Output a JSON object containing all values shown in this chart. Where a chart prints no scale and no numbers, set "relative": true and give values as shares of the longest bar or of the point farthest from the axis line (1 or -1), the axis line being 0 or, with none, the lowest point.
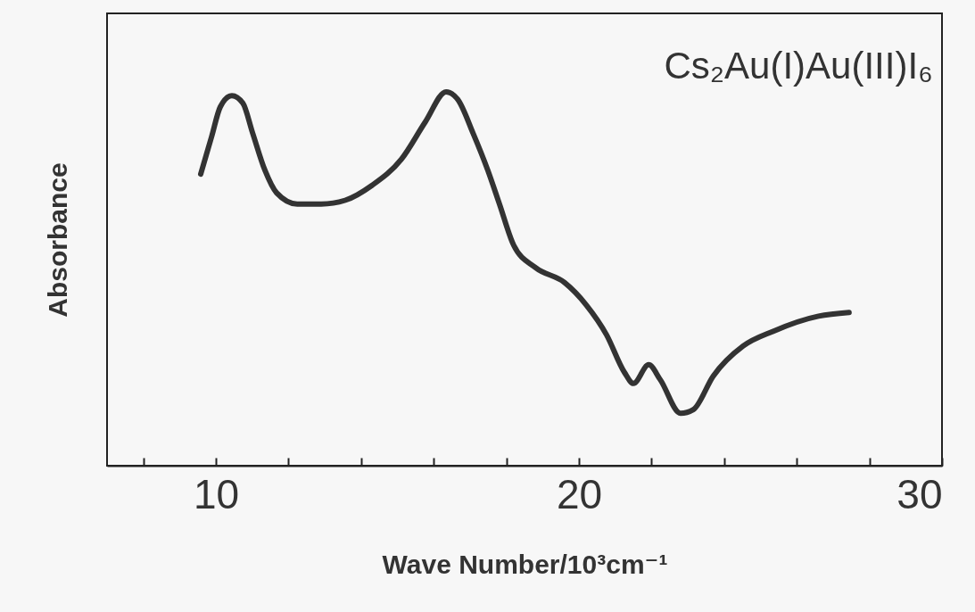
{
  "chart_data": {
    "type": "line",
    "relative": true,
    "xlabel": "Wave Number/10³cm⁻¹",
    "ylabel": "Absorbance",
    "annotations": [
      "Cs₂Au(I)Au(III)I₆"
    ],
    "xlim": [
      7,
      30
    ],
    "xticks": [
      {
        "value": 8,
        "label": null
      },
      10,
      {
        "value": 12,
        "label": null
      },
      {
        "value": 14,
        "label": null
      },
      {
        "value": 16,
        "label": null
      },
      {
        "value": 18,
        "label": null
      },
      20,
      {
        "value": 22,
        "label": null
      },
      {
        "value": 24,
        "label": null
      },
      {
        "value": 26,
        "label": null
      },
      {
        "value": 28,
        "label": null
      },
      30
    ],
    "grid": false,
    "marker": "none",
    "line_style": "solid",
    "series": [
      {
        "color": "#333333",
        "x": [
          9.58,
          9.88,
          10.12,
          10.44,
          10.74,
          11.01,
          11.35,
          11.67,
          12.24,
          12.9,
          13.56,
          14.3,
          15.11,
          15.77,
          16.34,
          16.66,
          17.08,
          17.49,
          17.81,
          18.2,
          18.8,
          19.6,
          20.2,
          20.76,
          21.25,
          21.5,
          21.92,
          22.24,
          22.8,
          23.15,
          23.7,
          24.52,
          25.36,
          26.6,
          27.44
        ],
        "values": [
          0.78,
          0.88,
          0.96,
          0.99,
          0.97,
          0.89,
          0.79,
          0.73,
          0.7,
          0.7,
          0.71,
          0.75,
          0.82,
          0.92,
          1.0,
          0.98,
          0.89,
          0.79,
          0.7,
          0.59,
          0.53,
          0.49,
          0.43,
          0.35,
          0.25,
          0.22,
          0.27,
          0.23,
          0.14,
          0.15,
          0.24,
          0.32,
          0.36,
          0.4,
          0.41
        ]
      }
    ]
  }
}
